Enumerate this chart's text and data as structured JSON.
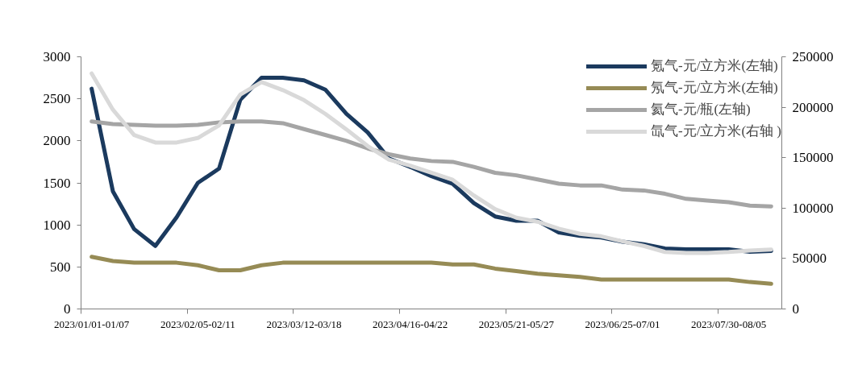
{
  "chart_data": {
    "type": "line",
    "categories": [
      "2023/01/01-01/07",
      null,
      null,
      null,
      null,
      "2023/02/05-02/11",
      null,
      null,
      null,
      null,
      "2023/03/12-03/18",
      null,
      null,
      null,
      null,
      "2023/04/16-04/22",
      null,
      null,
      null,
      null,
      "2023/05/21-05/27",
      null,
      null,
      null,
      null,
      "2023/06/25-07/01",
      null,
      null,
      null,
      null,
      "2023/07/30-08/05",
      null,
      null
    ],
    "series": [
      {
        "name": "氪气-元/立方米(左轴)",
        "color": "#1b3a5e",
        "values": [
          2620,
          1400,
          950,
          750,
          1090,
          1500,
          1670,
          2490,
          2750,
          2750,
          2720,
          2610,
          2320,
          2100,
          1790,
          1690,
          1580,
          1490,
          1260,
          1100,
          1050,
          1050,
          910,
          870,
          850,
          800,
          770,
          720,
          710,
          710,
          710,
          680,
          690
        ]
      },
      {
        "name": "氖气-元/立方米(左轴)",
        "color": "#968b55",
        "values": [
          620,
          570,
          550,
          550,
          550,
          520,
          460,
          460,
          520,
          550,
          550,
          550,
          550,
          550,
          550,
          550,
          550,
          530,
          530,
          480,
          450,
          420,
          400,
          380,
          350,
          350,
          350,
          350,
          350,
          350,
          350,
          320,
          300
        ]
      },
      {
        "name": "氦气-元/瓶(左轴)",
        "color": "#a5a5a5",
        "values": [
          2230,
          2200,
          2190,
          2180,
          2180,
          2190,
          2220,
          2230,
          2230,
          2210,
          2140,
          2070,
          2000,
          1910,
          1840,
          1790,
          1760,
          1750,
          1690,
          1620,
          1590,
          1540,
          1490,
          1470,
          1470,
          1420,
          1410,
          1370,
          1310,
          1290,
          1270,
          1230,
          1220
        ]
      },
      {
        "name": "氙气-元/立方米(右轴 )",
        "color": "#d9d9d9",
        "axis": "y2",
        "values": [
          233500,
          197500,
          172500,
          165000,
          165000,
          169500,
          182000,
          212500,
          225000,
          217000,
          207000,
          193500,
          178000,
          161500,
          148000,
          142000,
          135000,
          128000,
          112500,
          99000,
          90500,
          86500,
          79500,
          74500,
          72000,
          67000,
          62500,
          56500,
          55500,
          55500,
          56500,
          58000,
          59000
        ]
      }
    ],
    "ylim": [
      0,
      3000
    ],
    "yticks": [
      0,
      500,
      1000,
      1500,
      2000,
      2500,
      3000
    ],
    "y2lim": [
      0,
      250000
    ],
    "y2ticks": [
      0,
      50000,
      100000,
      150000,
      200000,
      250000
    ],
    "legend": "top right",
    "marker": "none",
    "line_style": "solid"
  }
}
